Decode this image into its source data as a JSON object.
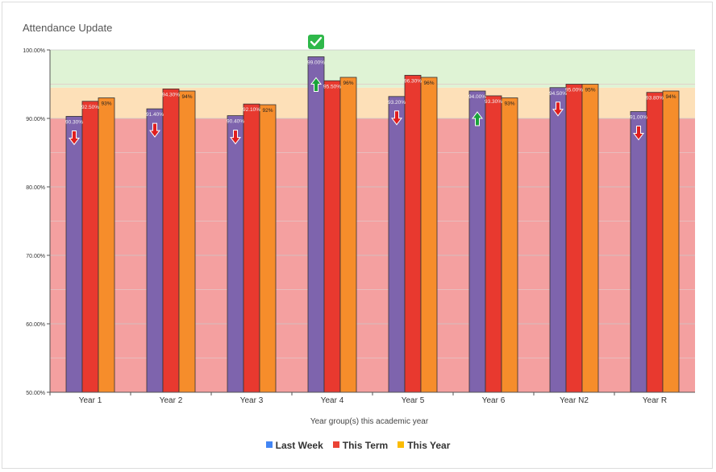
{
  "chart_data": {
    "type": "bar",
    "title": "Attendance Update",
    "xlabel": "Year group(s) this academic year",
    "ylabel": "",
    "ylim": [
      50,
      100
    ],
    "yticks": [
      "50.00%",
      "60.00%",
      "70.00%",
      "80.00%",
      "90.00%",
      "100.00%"
    ],
    "ytick_values": [
      50,
      60,
      70,
      80,
      90,
      100
    ],
    "categories": [
      "Year 1",
      "Year 2",
      "Year 3",
      "Year 4",
      "Year 5",
      "Year 6",
      "Year N2",
      "Year R"
    ],
    "series": [
      {
        "name": "Last Week",
        "color": "#4285f4",
        "bar_color": "#7e64ad",
        "values": [
          90.3,
          91.4,
          90.4,
          99.0,
          93.2,
          94.0,
          94.5,
          91.0
        ],
        "labels": [
          "90.30%",
          "91.40%",
          "90.40%",
          "99.00%",
          "93.20%",
          "94.00%",
          "94.50%",
          "91.00%"
        ]
      },
      {
        "name": "This Term",
        "color": "#ea4335",
        "bar_color": "#e8392f",
        "values": [
          92.5,
          94.3,
          92.1,
          95.5,
          96.3,
          93.3,
          95.0,
          93.8
        ],
        "labels": [
          "92.50%",
          "94.30%",
          "92.10%",
          "95.50%",
          "96.30%",
          "93.30%",
          "95.00%",
          "93.80%"
        ]
      },
      {
        "name": "This Year",
        "color": "#fbbc04",
        "bar_color": "#f68d2b",
        "values": [
          93,
          94,
          92,
          96,
          96,
          93,
          95,
          94
        ],
        "labels": [
          "93%",
          "94%",
          "92%",
          "96%",
          "96%",
          "93%",
          "95%",
          "94%"
        ]
      }
    ],
    "trend_arrows": [
      "down",
      "down",
      "down",
      "up",
      "down",
      "up",
      "down",
      "down"
    ],
    "achievement_marks": [
      "",
      "",
      "",
      "check",
      "",
      "",
      "",
      ""
    ],
    "bands": [
      {
        "from": 50,
        "to": 90,
        "color": "#f4a0a0"
      },
      {
        "from": 90,
        "to": 94.5,
        "color": "#fde0b8"
      },
      {
        "from": 94.5,
        "to": 100,
        "color": "#dff3d5"
      }
    ]
  }
}
